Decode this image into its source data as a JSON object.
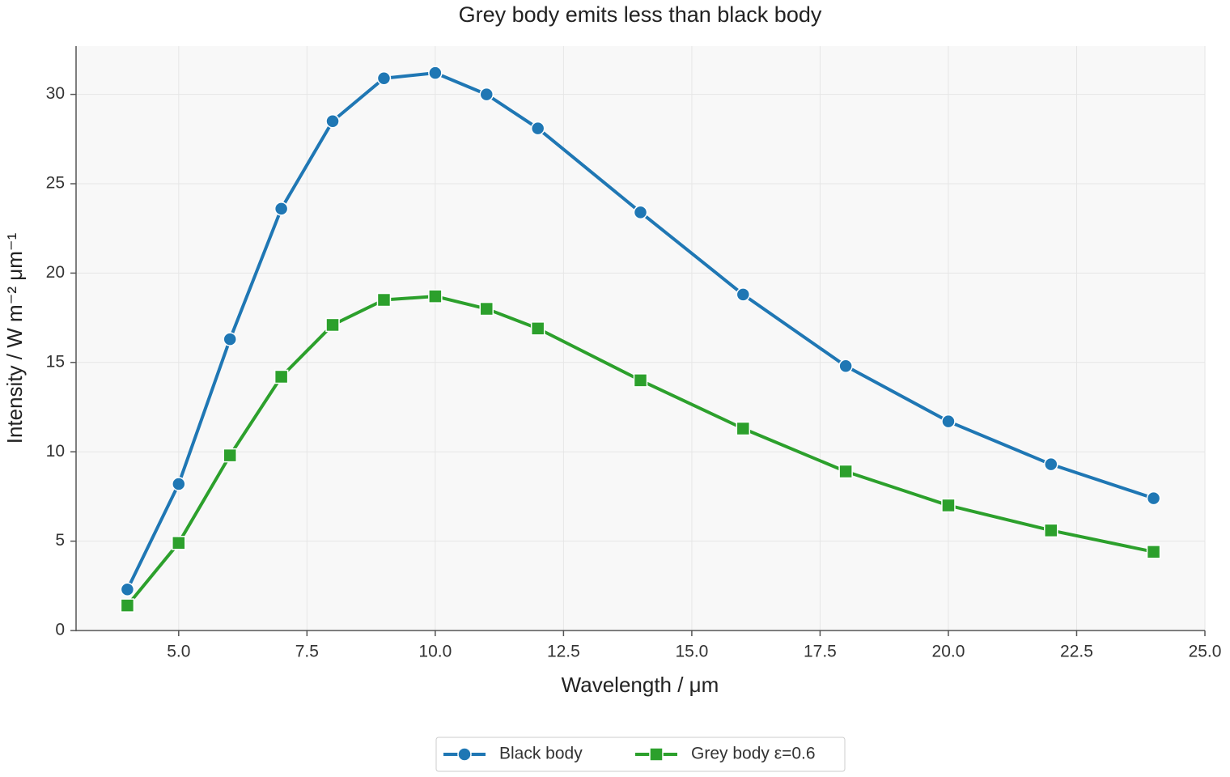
{
  "chart_data": {
    "type": "line",
    "title": "Grey body emits less than black body",
    "xlabel": "Wavelength / μm",
    "ylabel": "Intensity / W m⁻² μm⁻¹",
    "x": [
      4,
      5,
      6,
      7,
      8,
      9,
      10,
      11,
      12,
      14,
      16,
      18,
      20,
      22,
      24
    ],
    "series": [
      {
        "name": "Black body",
        "color": "#1f77b4",
        "marker": "circle",
        "values": [
          2.3,
          8.2,
          16.3,
          23.6,
          28.5,
          30.9,
          31.2,
          30.0,
          28.1,
          23.4,
          18.8,
          14.8,
          11.7,
          9.3,
          7.4
        ]
      },
      {
        "name": "Grey body ε=0.6",
        "color": "#2ca02c",
        "marker": "square",
        "values": [
          1.4,
          4.9,
          9.8,
          14.2,
          17.1,
          18.5,
          18.7,
          18.0,
          16.9,
          14.0,
          11.3,
          8.9,
          7.0,
          5.6,
          4.4
        ]
      }
    ],
    "xlim": [
      3,
      25
    ],
    "xticks": [
      {
        "value": 5,
        "label": "5.0"
      },
      {
        "value": 7.5,
        "label": "7.5"
      },
      {
        "value": 10,
        "label": "10.0"
      },
      {
        "value": 12.5,
        "label": "12.5"
      },
      {
        "value": 15,
        "label": "15.0"
      },
      {
        "value": 17.5,
        "label": "17.5"
      },
      {
        "value": 20,
        "label": "20.0"
      },
      {
        "value": 22.5,
        "label": "22.5"
      },
      {
        "value": 25,
        "label": "25.0"
      }
    ],
    "ylim": [
      0,
      32.7
    ],
    "yticks": [
      0,
      5,
      10,
      15,
      20,
      25,
      30
    ],
    "grid": true,
    "legend": "bottom"
  }
}
